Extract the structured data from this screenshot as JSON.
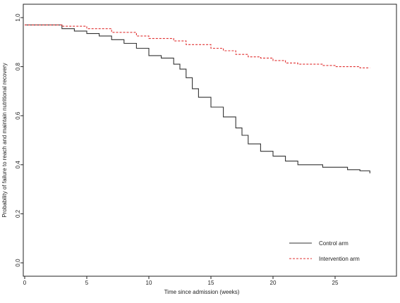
{
  "chart_data": {
    "type": "line",
    "title": "",
    "xlabel": "Time since admission (weeks)",
    "ylabel": "Probability of failure to reach and maintain nutritional recovery",
    "xlim": [
      0,
      30
    ],
    "ylim": [
      0,
      1.0
    ],
    "xticks": [
      "0",
      "5",
      "10",
      "15",
      "20",
      "25"
    ],
    "yticks": [
      "0.0",
      "0.2",
      "0.4",
      "0.6",
      "0.8",
      "1.0"
    ],
    "grid": false,
    "legend_position": "bottom-right",
    "series": [
      {
        "name": "Control arm",
        "color": "#333333",
        "line_style": "solid",
        "points": [
          [
            0,
            0.97
          ],
          [
            2,
            0.97
          ],
          [
            3,
            0.955
          ],
          [
            4,
            0.945
          ],
          [
            5,
            0.935
          ],
          [
            6,
            0.925
          ],
          [
            7,
            0.91
          ],
          [
            8,
            0.895
          ],
          [
            9,
            0.875
          ],
          [
            10,
            0.845
          ],
          [
            11,
            0.835
          ],
          [
            12,
            0.81
          ],
          [
            12.5,
            0.79
          ],
          [
            13,
            0.755
          ],
          [
            13.5,
            0.71
          ],
          [
            14,
            0.675
          ],
          [
            15,
            0.635
          ],
          [
            16,
            0.595
          ],
          [
            17,
            0.55
          ],
          [
            17.5,
            0.52
          ],
          [
            18,
            0.485
          ],
          [
            19,
            0.455
          ],
          [
            20,
            0.435
          ],
          [
            21,
            0.415
          ],
          [
            22,
            0.4
          ],
          [
            24,
            0.39
          ],
          [
            26,
            0.38
          ],
          [
            27,
            0.375
          ],
          [
            27.8,
            0.365
          ]
        ]
      },
      {
        "name": "Intervention arm",
        "color": "#e03030",
        "line_style": "dashed",
        "points": [
          [
            0,
            0.97
          ],
          [
            2,
            0.97
          ],
          [
            3,
            0.965
          ],
          [
            5,
            0.955
          ],
          [
            7,
            0.94
          ],
          [
            9,
            0.925
          ],
          [
            10,
            0.915
          ],
          [
            12,
            0.905
          ],
          [
            13,
            0.89
          ],
          [
            15,
            0.875
          ],
          [
            16,
            0.865
          ],
          [
            17,
            0.85
          ],
          [
            18,
            0.84
          ],
          [
            19,
            0.835
          ],
          [
            20,
            0.825
          ],
          [
            21,
            0.815
          ],
          [
            22,
            0.81
          ],
          [
            24,
            0.805
          ],
          [
            25,
            0.8
          ],
          [
            26,
            0.8
          ],
          [
            27,
            0.795
          ],
          [
            27.8,
            0.795
          ]
        ]
      }
    ]
  }
}
